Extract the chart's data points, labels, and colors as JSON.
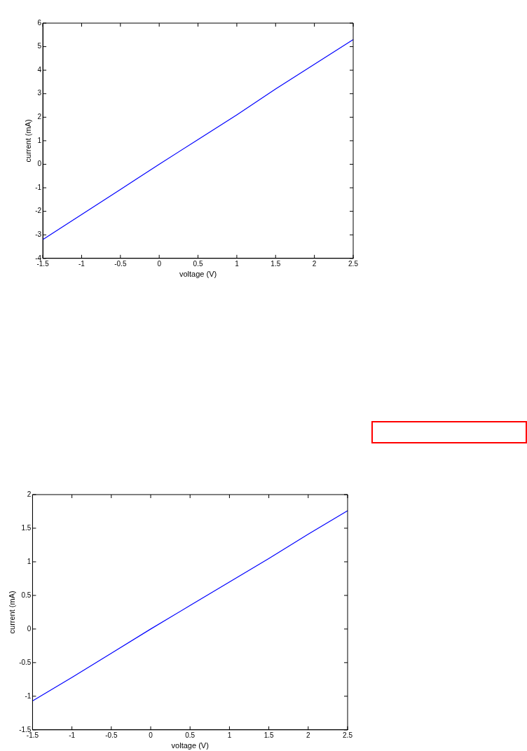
{
  "chart_data": [
    {
      "type": "line",
      "xlabel": "voltage (V)",
      "ylabel": "current (mA)",
      "x": [
        -1.5,
        -1,
        -0.5,
        0,
        0.5,
        1,
        1.5,
        2,
        2.5
      ],
      "series": [
        {
          "color": "#0000ff",
          "values": [
            -3.2,
            -2.14,
            -1.07,
            0,
            1.05,
            2.1,
            3.2,
            4.25,
            5.3
          ]
        }
      ],
      "xlim": [
        -1.5,
        2.5
      ],
      "xticks": [
        -1.5,
        -1,
        -0.5,
        0,
        0.5,
        1,
        1.5,
        2,
        2.5
      ],
      "ylim": [
        -4,
        6
      ],
      "yticks": [
        -4,
        -3,
        -2,
        -1,
        0,
        1,
        2,
        3,
        4,
        5,
        6
      ],
      "grid": false,
      "legend": false,
      "marker": "none",
      "line_style": "solid"
    },
    {
      "type": "line",
      "xlabel": "voltage (V)",
      "ylabel": "current (mA)",
      "x": [
        -1.5,
        -1,
        -0.5,
        0,
        0.5,
        1,
        1.5,
        2,
        2.5
      ],
      "series": [
        {
          "color": "#0000ff",
          "values": [
            -1.07,
            -0.72,
            -0.36,
            0,
            0.35,
            0.7,
            1.05,
            1.41,
            1.76
          ]
        }
      ],
      "xlim": [
        -1.5,
        2.5
      ],
      "xticks": [
        -1.5,
        -1,
        -0.5,
        0,
        0.5,
        1,
        1.5,
        2,
        2.5
      ],
      "ylim": [
        -1.5,
        2
      ],
      "yticks": [
        -1.5,
        -1,
        -0.5,
        0,
        0.5,
        1,
        1.5,
        2
      ],
      "grid": false,
      "legend": false,
      "marker": "none",
      "line_style": "solid"
    }
  ]
}
